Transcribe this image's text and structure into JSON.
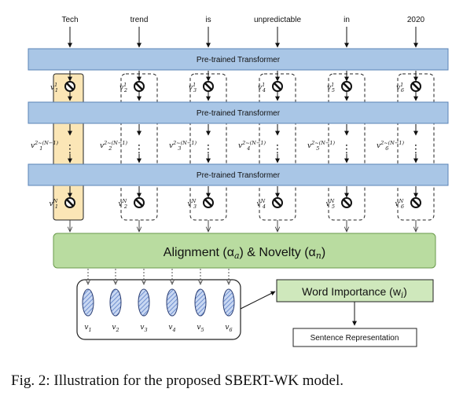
{
  "words": [
    "Tech",
    "trend",
    "is",
    "unpredictable",
    "in",
    "2020"
  ],
  "transformer_label": "Pre-trained Transformer",
  "vector_labels": {
    "base": "v",
    "top_sub": [
      "1",
      "2",
      "3",
      "4",
      "5",
      "6"
    ],
    "top_sup": "1",
    "mid_sup": "2~(N−1)",
    "bottom_sup": "N"
  },
  "alignment_label": "Alignment (α",
  "alignment_sub_a": "a",
  "alignment_mid": ") & Novelty (α",
  "alignment_sub_n": "n",
  "alignment_end": ")",
  "word_importance": "Word Importance (w",
  "word_importance_sub": "i",
  "word_importance_end": ")",
  "sentence_repr": "Sentence Representation",
  "output_vectors": [
    "v1",
    "v2",
    "v3",
    "v4",
    "v5",
    "v6"
  ],
  "caption": "Fig. 2: Illustration for the proposed SBERT-WK model.",
  "colors": {
    "transformer_fill": "#a9c6e6",
    "transformer_stroke": "#5b84b7",
    "highlight_col": "#fbe6b6",
    "alignment_fill": "#b9dca0",
    "alignment_stroke": "#6a9a4c",
    "word_imp_fill": "#cfe8bc",
    "ellipse_fill": "#97b3e0"
  }
}
